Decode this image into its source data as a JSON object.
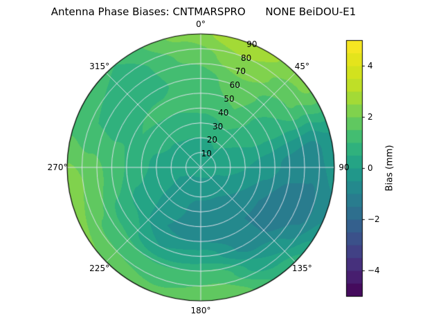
{
  "chart_data": {
    "type": "heatmap",
    "subtype": "polar_contourf",
    "title": "Antenna Phase Biases: CNTMARSPRO      NONE BeiDOU-E1",
    "theta_tick_labels": [
      "0°",
      "45°",
      "90",
      "135°",
      "180°",
      "225°",
      "270°",
      "315°"
    ],
    "theta_tick_angles_deg": [
      0,
      45,
      90,
      135,
      180,
      225,
      270,
      315
    ],
    "theta_zero": "top",
    "theta_direction": "clockwise",
    "r_tick_labels": [
      "10",
      "20",
      "30",
      "40",
      "50",
      "60",
      "70",
      "80",
      "90"
    ],
    "r_tick_values": [
      10,
      20,
      30,
      40,
      50,
      60,
      70,
      80,
      90
    ],
    "r_axis": {
      "min": 0,
      "max": 90
    },
    "grid": true,
    "colormap": "viridis",
    "level_step_mm": 0.5,
    "colorbar": {
      "label": "Bias (mm)",
      "ticks": [
        "4",
        "2",
        "0",
        "−2",
        "−4"
      ],
      "tick_values": [
        4,
        2,
        0,
        -2,
        -4
      ],
      "vmin": -5,
      "vmax": 5,
      "position": "right"
    },
    "azimuth_deg": [
      0,
      30,
      60,
      90,
      120,
      150,
      180,
      210,
      240,
      270,
      300,
      330
    ],
    "zenith_deg": [
      0,
      15,
      30,
      45,
      60,
      75,
      90
    ],
    "bias_mm": [
      [
        0.3,
        0.3,
        0.3,
        0.3,
        0.3,
        0.3,
        0.3,
        0.3,
        0.3,
        0.3,
        0.3,
        0.3
      ],
      [
        0.4,
        0.5,
        0.3,
        0.1,
        -0.1,
        -0.3,
        -0.4,
        -0.3,
        0.0,
        0.2,
        0.3,
        0.4
      ],
      [
        0.8,
        1.0,
        0.5,
        0.0,
        -0.5,
        -0.7,
        -0.6,
        -0.4,
        0.1,
        0.4,
        0.6,
        0.7
      ],
      [
        1.3,
        1.5,
        0.7,
        -0.3,
        -1.0,
        -1.0,
        -0.8,
        -0.5,
        0.3,
        0.8,
        1.0,
        1.1
      ],
      [
        1.2,
        1.8,
        1.0,
        -0.6,
        -1.5,
        -0.8,
        0.2,
        0.0,
        0.8,
        1.3,
        0.9,
        0.9
      ],
      [
        1.6,
        2.4,
        1.6,
        -0.8,
        -1.2,
        0.0,
        1.4,
        1.2,
        1.4,
        1.9,
        1.0,
        0.8
      ],
      [
        2.1,
        2.9,
        2.2,
        -0.2,
        -0.6,
        0.8,
        2.0,
        1.6,
        2.0,
        2.3,
        1.4,
        1.0
      ]
    ]
  }
}
